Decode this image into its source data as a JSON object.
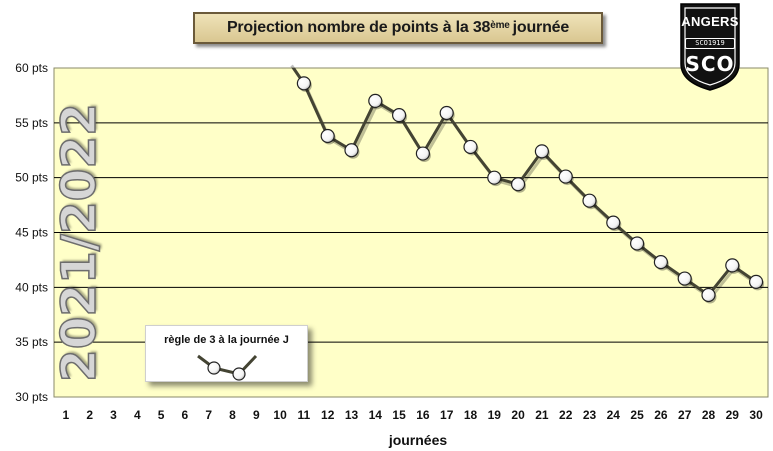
{
  "chart_data": {
    "type": "line",
    "title": "Projection nombre de points à la  38ème journée",
    "title_main": "Projection nombre de points à la  38",
    "title_sup": "ème",
    "title_end": "journée",
    "xlabel": "journées",
    "ylabel": "",
    "categories": [
      "1",
      "2",
      "3",
      "4",
      "5",
      "6",
      "7",
      "8",
      "9",
      "10",
      "11",
      "12",
      "13",
      "14",
      "15",
      "16",
      "17",
      "18",
      "19",
      "20",
      "21",
      "22",
      "23",
      "24",
      "25",
      "26",
      "27",
      "28",
      "29",
      "30"
    ],
    "x": [
      11,
      12,
      13,
      14,
      15,
      16,
      17,
      18,
      19,
      20,
      21,
      22,
      23,
      24,
      25,
      26,
      27,
      28,
      29,
      30
    ],
    "series": [
      {
        "values": [
          58.6,
          53.8,
          52.5,
          57.0,
          55.7,
          52.2,
          55.9,
          52.8,
          50.0,
          49.4,
          52.4,
          50.1,
          47.9,
          45.9,
          44.0,
          42.3,
          40.8,
          39.3,
          42.0,
          40.5
        ],
        "line_start_value": 60.5,
        "line_start_x": 10.4
      }
    ],
    "ylim": [
      30,
      60
    ],
    "xlim": [
      0.5,
      30.5
    ],
    "yticks": [
      30,
      35,
      40,
      45,
      50,
      55,
      60
    ],
    "ytick_labels": [
      "30 pts",
      "35 pts",
      "40 pts",
      "45 pts",
      "50 pts",
      "55 pts",
      "60 pts"
    ],
    "grid": true,
    "legend_placement": "bottom-left",
    "legend_label": "règle de 3 à la journée J",
    "season_watermark": "2021/2022",
    "colors": {
      "plot_background": "#ffffc8",
      "line": "#444433",
      "marker_fill": "#ffffff",
      "marker_edge": "#222222",
      "grid": "#000000"
    }
  },
  "logo": {
    "top": "ANGERS",
    "mid": "SCO1919",
    "bottom": "SCO",
    "icon": "angers-sco-shield-icon"
  }
}
